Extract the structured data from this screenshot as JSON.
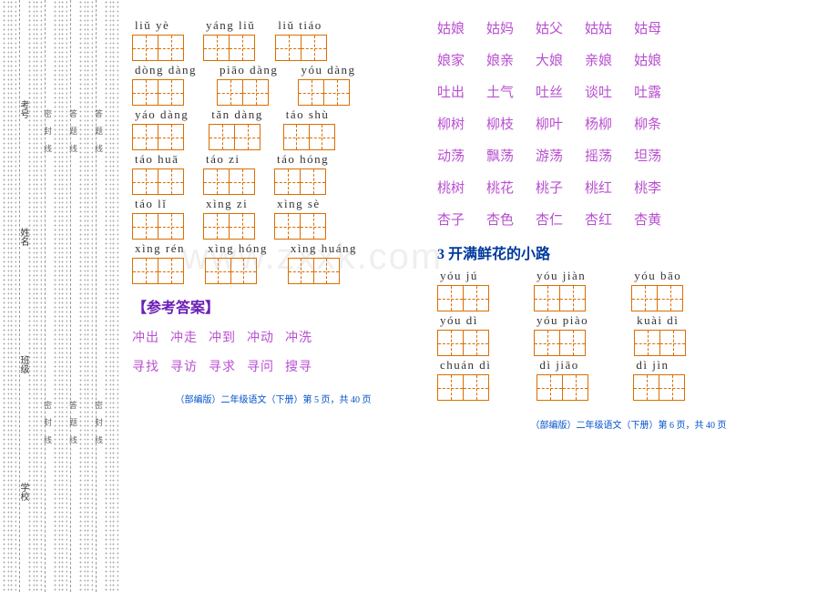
{
  "sidebar": {
    "labels": [
      "学校",
      "班级",
      "姓名",
      "考号"
    ],
    "seal_text_1": "密 封 线",
    "seal_text_2": "答 题 线",
    "seal_text_3": "密 封 线",
    "seal_text_4": "答 题 线"
  },
  "left_page": {
    "rows": [
      [
        {
          "py": "liǔ  yè",
          "n": 2
        },
        {
          "py": "yáng liǔ",
          "n": 2
        },
        {
          "py": "liǔ  tiáo",
          "n": 2
        }
      ],
      [
        {
          "py": "dòng dàng",
          "n": 2
        },
        {
          "py": "piāo dàng",
          "n": 2
        },
        {
          "py": "yóu dàng",
          "n": 2
        }
      ],
      [
        {
          "py": "yáo dàng",
          "n": 2
        },
        {
          "py": "tǎn dàng",
          "n": 2
        },
        {
          "py": "táo shù",
          "n": 2
        }
      ],
      [
        {
          "py": "táo huā",
          "n": 2
        },
        {
          "py": "táo zi",
          "n": 2
        },
        {
          "py": "táo hóng",
          "n": 2
        }
      ],
      [
        {
          "py": "táo lǐ",
          "n": 2
        },
        {
          "py": "xìng zi",
          "n": 2
        },
        {
          "py": "xìng sè",
          "n": 2
        }
      ],
      [
        {
          "py": "xìng rén",
          "n": 2
        },
        {
          "py": "xìng hóng",
          "n": 2
        },
        {
          "py": "xìng huáng",
          "n": 2
        }
      ]
    ],
    "answer_title": "【参考答案】",
    "answer_lines": [
      [
        "冲出",
        "冲走",
        "冲到",
        "冲动",
        "冲洗"
      ],
      [
        "寻找",
        "寻访",
        "寻求",
        "寻问",
        "搜寻"
      ]
    ],
    "footer": "（部编版）二年级语文（下册）第 5 页，共 40 页"
  },
  "right_page": {
    "word_rows": [
      [
        "姑娘",
        "姑妈",
        "姑父",
        "姑姑",
        "姑母"
      ],
      [
        "娘家",
        "娘亲",
        "大娘",
        "亲娘",
        "姑娘"
      ],
      [
        "吐出",
        "土气",
        "吐丝",
        "谈吐",
        "吐露"
      ],
      [
        "柳树",
        "柳枝",
        "柳叶",
        "杨柳",
        "柳条"
      ],
      [
        "动荡",
        "飘荡",
        "游荡",
        "摇荡",
        "坦荡"
      ],
      [
        "桃树",
        "桃花",
        "桃子",
        "桃红",
        "桃李"
      ],
      [
        "杏子",
        "杏色",
        "杏仁",
        "杏红",
        "杏黄"
      ]
    ],
    "section_title": "3  开满鲜花的小路",
    "grid_rows": [
      [
        {
          "py": "yóu jú",
          "n": 2
        },
        {
          "py": "yóu jiàn",
          "n": 2
        },
        {
          "py": "yóu bāo",
          "n": 2
        }
      ],
      [
        {
          "py": "yóu dì",
          "n": 2
        },
        {
          "py": "yóu piào",
          "n": 2
        },
        {
          "py": "kuài dì",
          "n": 2
        }
      ],
      [
        {
          "py": "chuán dì",
          "n": 2
        },
        {
          "py": "dì jiāo",
          "n": 2
        },
        {
          "py": "dì jìn",
          "n": 2
        }
      ]
    ],
    "footer": "（部编版）二年级语文（下册）第 6 页，共 40 页"
  },
  "watermark": "www.zxxk.com",
  "colors": {
    "grid_border": "#db6e00",
    "answer_text": "#b94fd1",
    "answer_title": "#6a1fb5",
    "section_title": "#003a9e",
    "footer": "#0052cc"
  }
}
